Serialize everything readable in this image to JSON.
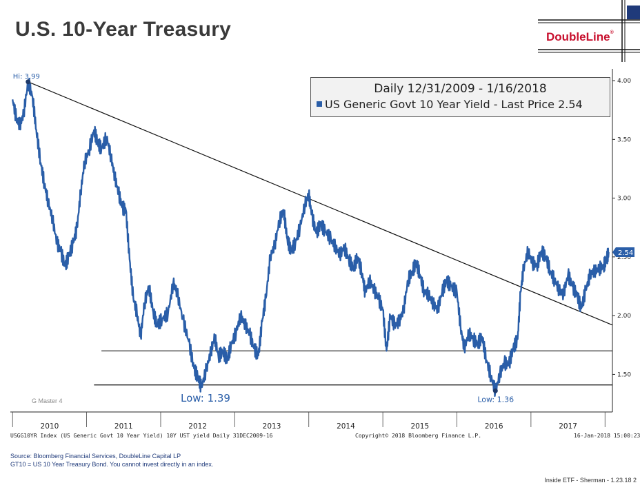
{
  "slide": {
    "title": "U.S. 10-Year Treasury",
    "logo": "DoubleLine",
    "footer": "Inside ETF - Sherman - 1.23.18   2"
  },
  "legend": {
    "line1": "Daily 12/31/2009 - 1/16/2018",
    "line2": "US Generic Govt 10 Year Yield - Last Price 2.54"
  },
  "notes": {
    "index_line": "USGG10YR Index (US Generic Govt 10 Year Yield) 10Y UST yield  Daily 31DEC2009-16",
    "copyright": "Copyright© 2018 Bloomberg Finance L.P.",
    "timestamp": "16-Jan-2018 15:00:23",
    "master": "G Master 4",
    "source1": "Source: Bloomberg Financial Services, DoubleLine Capital LP",
    "source2": "GT10 = US 10 Year Treasury Bond. You cannot invest directly in an index."
  },
  "colors": {
    "series": "#2a5ea8",
    "logo": "#c8102e",
    "last_label_bg": "#2a5ea8"
  },
  "chart_data": {
    "type": "line",
    "title": "U.S. 10-Year Treasury",
    "series_name": "US Generic Govt 10 Year Yield",
    "ylim": [
      1.18,
      4.1
    ],
    "xlim": [
      2009.97,
      2018.1
    ],
    "y_ticks": [
      {
        "value": 4.0,
        "label": "4.00"
      },
      {
        "value": 3.5,
        "label": "3.50"
      },
      {
        "value": 3.0,
        "label": "3.00"
      },
      {
        "value": 2.5,
        "label": "2.50"
      },
      {
        "value": 2.0,
        "label": "2.00"
      },
      {
        "value": 1.5,
        "label": "1.50"
      }
    ],
    "x_years": [
      "2010",
      "2011",
      "2012",
      "2013",
      "2014",
      "2015",
      "2016",
      "2017"
    ],
    "last_price": 2.54,
    "last_price_label": "2.54",
    "annotations": {
      "high": {
        "label": "Hi: 3.99",
        "x": 2010.21,
        "y": 3.99
      },
      "low_2012": {
        "label": "Low: 1.39",
        "x": 2012.55,
        "y": 1.39
      },
      "low_2016": {
        "label": "Low: 1.36",
        "x": 2016.52,
        "y": 1.36
      }
    },
    "trendline": [
      [
        2010.21,
        3.99
      ],
      [
        2018.1,
        1.92
      ]
    ],
    "support_lines": [
      {
        "y": 1.7,
        "x_start": 2011.2,
        "x_end": 2018.1
      },
      {
        "y": 1.41,
        "x_start": 2011.1,
        "x_end": 2018.1
      }
    ],
    "points": [
      [
        2010.0,
        3.84
      ],
      [
        2010.05,
        3.68
      ],
      [
        2010.1,
        3.62
      ],
      [
        2010.15,
        3.72
      ],
      [
        2010.21,
        3.99
      ],
      [
        2010.27,
        3.86
      ],
      [
        2010.32,
        3.58
      ],
      [
        2010.38,
        3.3
      ],
      [
        2010.43,
        3.12
      ],
      [
        2010.48,
        2.97
      ],
      [
        2010.54,
        2.82
      ],
      [
        2010.6,
        2.62
      ],
      [
        2010.65,
        2.55
      ],
      [
        2010.71,
        2.42
      ],
      [
        2010.76,
        2.51
      ],
      [
        2010.82,
        2.62
      ],
      [
        2010.87,
        2.75
      ],
      [
        2010.92,
        3.05
      ],
      [
        2010.97,
        3.3
      ],
      [
        2011.03,
        3.4
      ],
      [
        2011.1,
        3.58
      ],
      [
        2011.15,
        3.47
      ],
      [
        2011.2,
        3.42
      ],
      [
        2011.27,
        3.52
      ],
      [
        2011.33,
        3.35
      ],
      [
        2011.38,
        3.18
      ],
      [
        2011.43,
        3.05
      ],
      [
        2011.48,
        2.92
      ],
      [
        2011.53,
        2.9
      ],
      [
        2011.58,
        2.48
      ],
      [
        2011.63,
        2.15
      ],
      [
        2011.68,
        2.02
      ],
      [
        2011.73,
        1.82
      ],
      [
        2011.78,
        2.1
      ],
      [
        2011.84,
        2.25
      ],
      [
        2011.9,
        2.03
      ],
      [
        2011.95,
        1.92
      ],
      [
        2012.02,
        1.97
      ],
      [
        2012.1,
        2.02
      ],
      [
        2012.17,
        2.28
      ],
      [
        2012.22,
        2.2
      ],
      [
        2012.3,
        1.97
      ],
      [
        2012.38,
        1.78
      ],
      [
        2012.45,
        1.55
      ],
      [
        2012.5,
        1.48
      ],
      [
        2012.55,
        1.39
      ],
      [
        2012.62,
        1.55
      ],
      [
        2012.68,
        1.7
      ],
      [
        2012.73,
        1.82
      ],
      [
        2012.78,
        1.65
      ],
      [
        2012.84,
        1.7
      ],
      [
        2012.9,
        1.62
      ],
      [
        2012.95,
        1.75
      ],
      [
        2013.02,
        1.86
      ],
      [
        2013.08,
        2.0
      ],
      [
        2013.14,
        1.92
      ],
      [
        2013.2,
        1.85
      ],
      [
        2013.26,
        1.72
      ],
      [
        2013.32,
        1.66
      ],
      [
        2013.37,
        1.95
      ],
      [
        2013.42,
        2.15
      ],
      [
        2013.48,
        2.5
      ],
      [
        2013.54,
        2.6
      ],
      [
        2013.6,
        2.8
      ],
      [
        2013.66,
        2.9
      ],
      [
        2013.71,
        2.65
      ],
      [
        2013.76,
        2.55
      ],
      [
        2013.82,
        2.62
      ],
      [
        2013.88,
        2.75
      ],
      [
        2013.95,
        2.95
      ],
      [
        2014.0,
        3.03
      ],
      [
        2014.04,
        2.86
      ],
      [
        2014.1,
        2.7
      ],
      [
        2014.16,
        2.78
      ],
      [
        2014.22,
        2.72
      ],
      [
        2014.3,
        2.65
      ],
      [
        2014.36,
        2.58
      ],
      [
        2014.42,
        2.52
      ],
      [
        2014.48,
        2.58
      ],
      [
        2014.54,
        2.48
      ],
      [
        2014.6,
        2.4
      ],
      [
        2014.66,
        2.5
      ],
      [
        2014.72,
        2.36
      ],
      [
        2014.76,
        2.2
      ],
      [
        2014.82,
        2.3
      ],
      [
        2014.88,
        2.22
      ],
      [
        2014.94,
        2.15
      ],
      [
        2015.0,
        2.05
      ],
      [
        2015.05,
        1.7
      ],
      [
        2015.1,
        2.0
      ],
      [
        2015.16,
        1.92
      ],
      [
        2015.22,
        1.95
      ],
      [
        2015.28,
        2.05
      ],
      [
        2015.34,
        2.3
      ],
      [
        2015.4,
        2.38
      ],
      [
        2015.45,
        2.45
      ],
      [
        2015.5,
        2.35
      ],
      [
        2015.56,
        2.2
      ],
      [
        2015.62,
        2.18
      ],
      [
        2015.68,
        2.1
      ],
      [
        2015.74,
        2.05
      ],
      [
        2015.8,
        2.2
      ],
      [
        2015.86,
        2.3
      ],
      [
        2015.92,
        2.25
      ],
      [
        2016.0,
        2.2
      ],
      [
        2016.05,
        1.9
      ],
      [
        2016.1,
        1.72
      ],
      [
        2016.16,
        1.85
      ],
      [
        2016.22,
        1.8
      ],
      [
        2016.28,
        1.76
      ],
      [
        2016.34,
        1.82
      ],
      [
        2016.4,
        1.62
      ],
      [
        2016.46,
        1.48
      ],
      [
        2016.52,
        1.36
      ],
      [
        2016.58,
        1.5
      ],
      [
        2016.64,
        1.6
      ],
      [
        2016.7,
        1.58
      ],
      [
        2016.76,
        1.72
      ],
      [
        2016.82,
        1.8
      ],
      [
        2016.86,
        2.2
      ],
      [
        2016.9,
        2.4
      ],
      [
        2016.96,
        2.55
      ],
      [
        2017.02,
        2.45
      ],
      [
        2017.08,
        2.42
      ],
      [
        2017.14,
        2.55
      ],
      [
        2017.2,
        2.5
      ],
      [
        2017.26,
        2.38
      ],
      [
        2017.32,
        2.3
      ],
      [
        2017.38,
        2.22
      ],
      [
        2017.44,
        2.18
      ],
      [
        2017.5,
        2.35
      ],
      [
        2017.56,
        2.25
      ],
      [
        2017.62,
        2.18
      ],
      [
        2017.68,
        2.06
      ],
      [
        2017.74,
        2.22
      ],
      [
        2017.8,
        2.35
      ],
      [
        2017.86,
        2.38
      ],
      [
        2017.92,
        2.4
      ],
      [
        2017.98,
        2.42
      ],
      [
        2018.02,
        2.48
      ],
      [
        2018.05,
        2.54
      ]
    ]
  }
}
